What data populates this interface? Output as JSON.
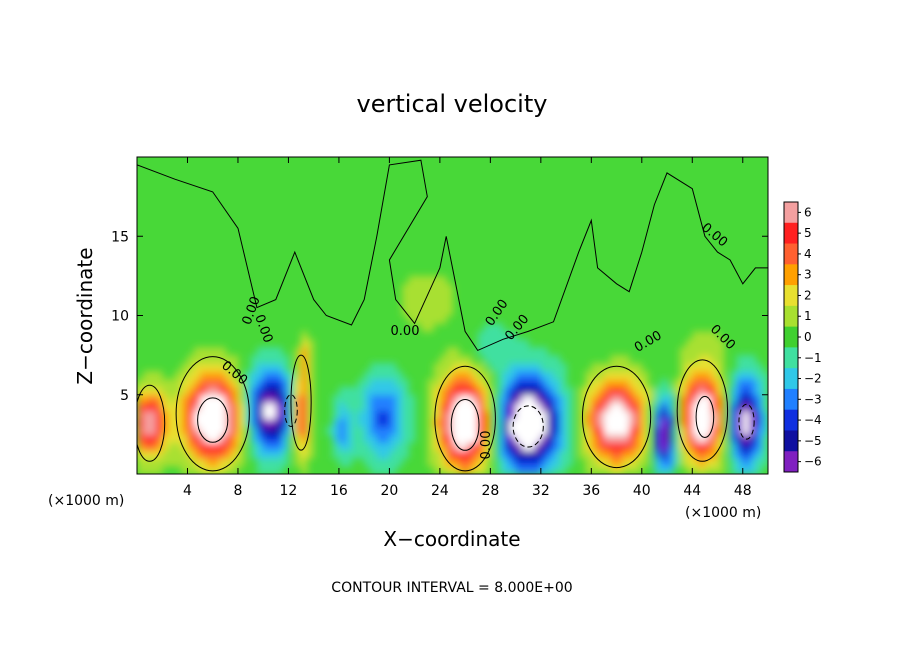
{
  "chart_data": {
    "type": "heatmap",
    "title": "vertical velocity",
    "xlabel": "X−coordinate",
    "ylabel": "Z−coordinate",
    "x_unit_left": "(×1000 m)",
    "x_unit_right": "(×1000 m)",
    "xlim": [
      0,
      50
    ],
    "ylim": [
      0,
      20
    ],
    "x_ticks": [
      "4",
      "8",
      "12",
      "16",
      "20",
      "24",
      "28",
      "32",
      "36",
      "40",
      "44",
      "48"
    ],
    "y_ticks": [
      "5",
      "10",
      "15"
    ],
    "colorbar": {
      "min": -6,
      "max": 6,
      "tick_labels": [
        "6",
        "5",
        "4",
        "3",
        "2",
        "1",
        "0",
        "−1",
        "−2",
        "−3",
        "−4",
        "−5",
        "−6"
      ],
      "colors": [
        "#f4a0a0",
        "#ff2020",
        "#ff6030",
        "#ffa000",
        "#e8e030",
        "#a8e030",
        "#40d030",
        "#40e0a0",
        "#30c8e8",
        "#2080ff",
        "#1030e0",
        "#1010a0",
        "#8020c0"
      ]
    },
    "contour_labels": [
      "0.00",
      "0.00",
      "0.00",
      "0.00",
      "0.00",
      "0.00",
      "0.00",
      "0.00",
      "0.00",
      "0.00"
    ],
    "updrafts_x": [
      1,
      6,
      13,
      26,
      38,
      45
    ],
    "downdrafts_x": [
      10,
      19,
      31,
      42,
      48
    ],
    "footer": "CONTOUR INTERVAL = 8.000E+00"
  }
}
